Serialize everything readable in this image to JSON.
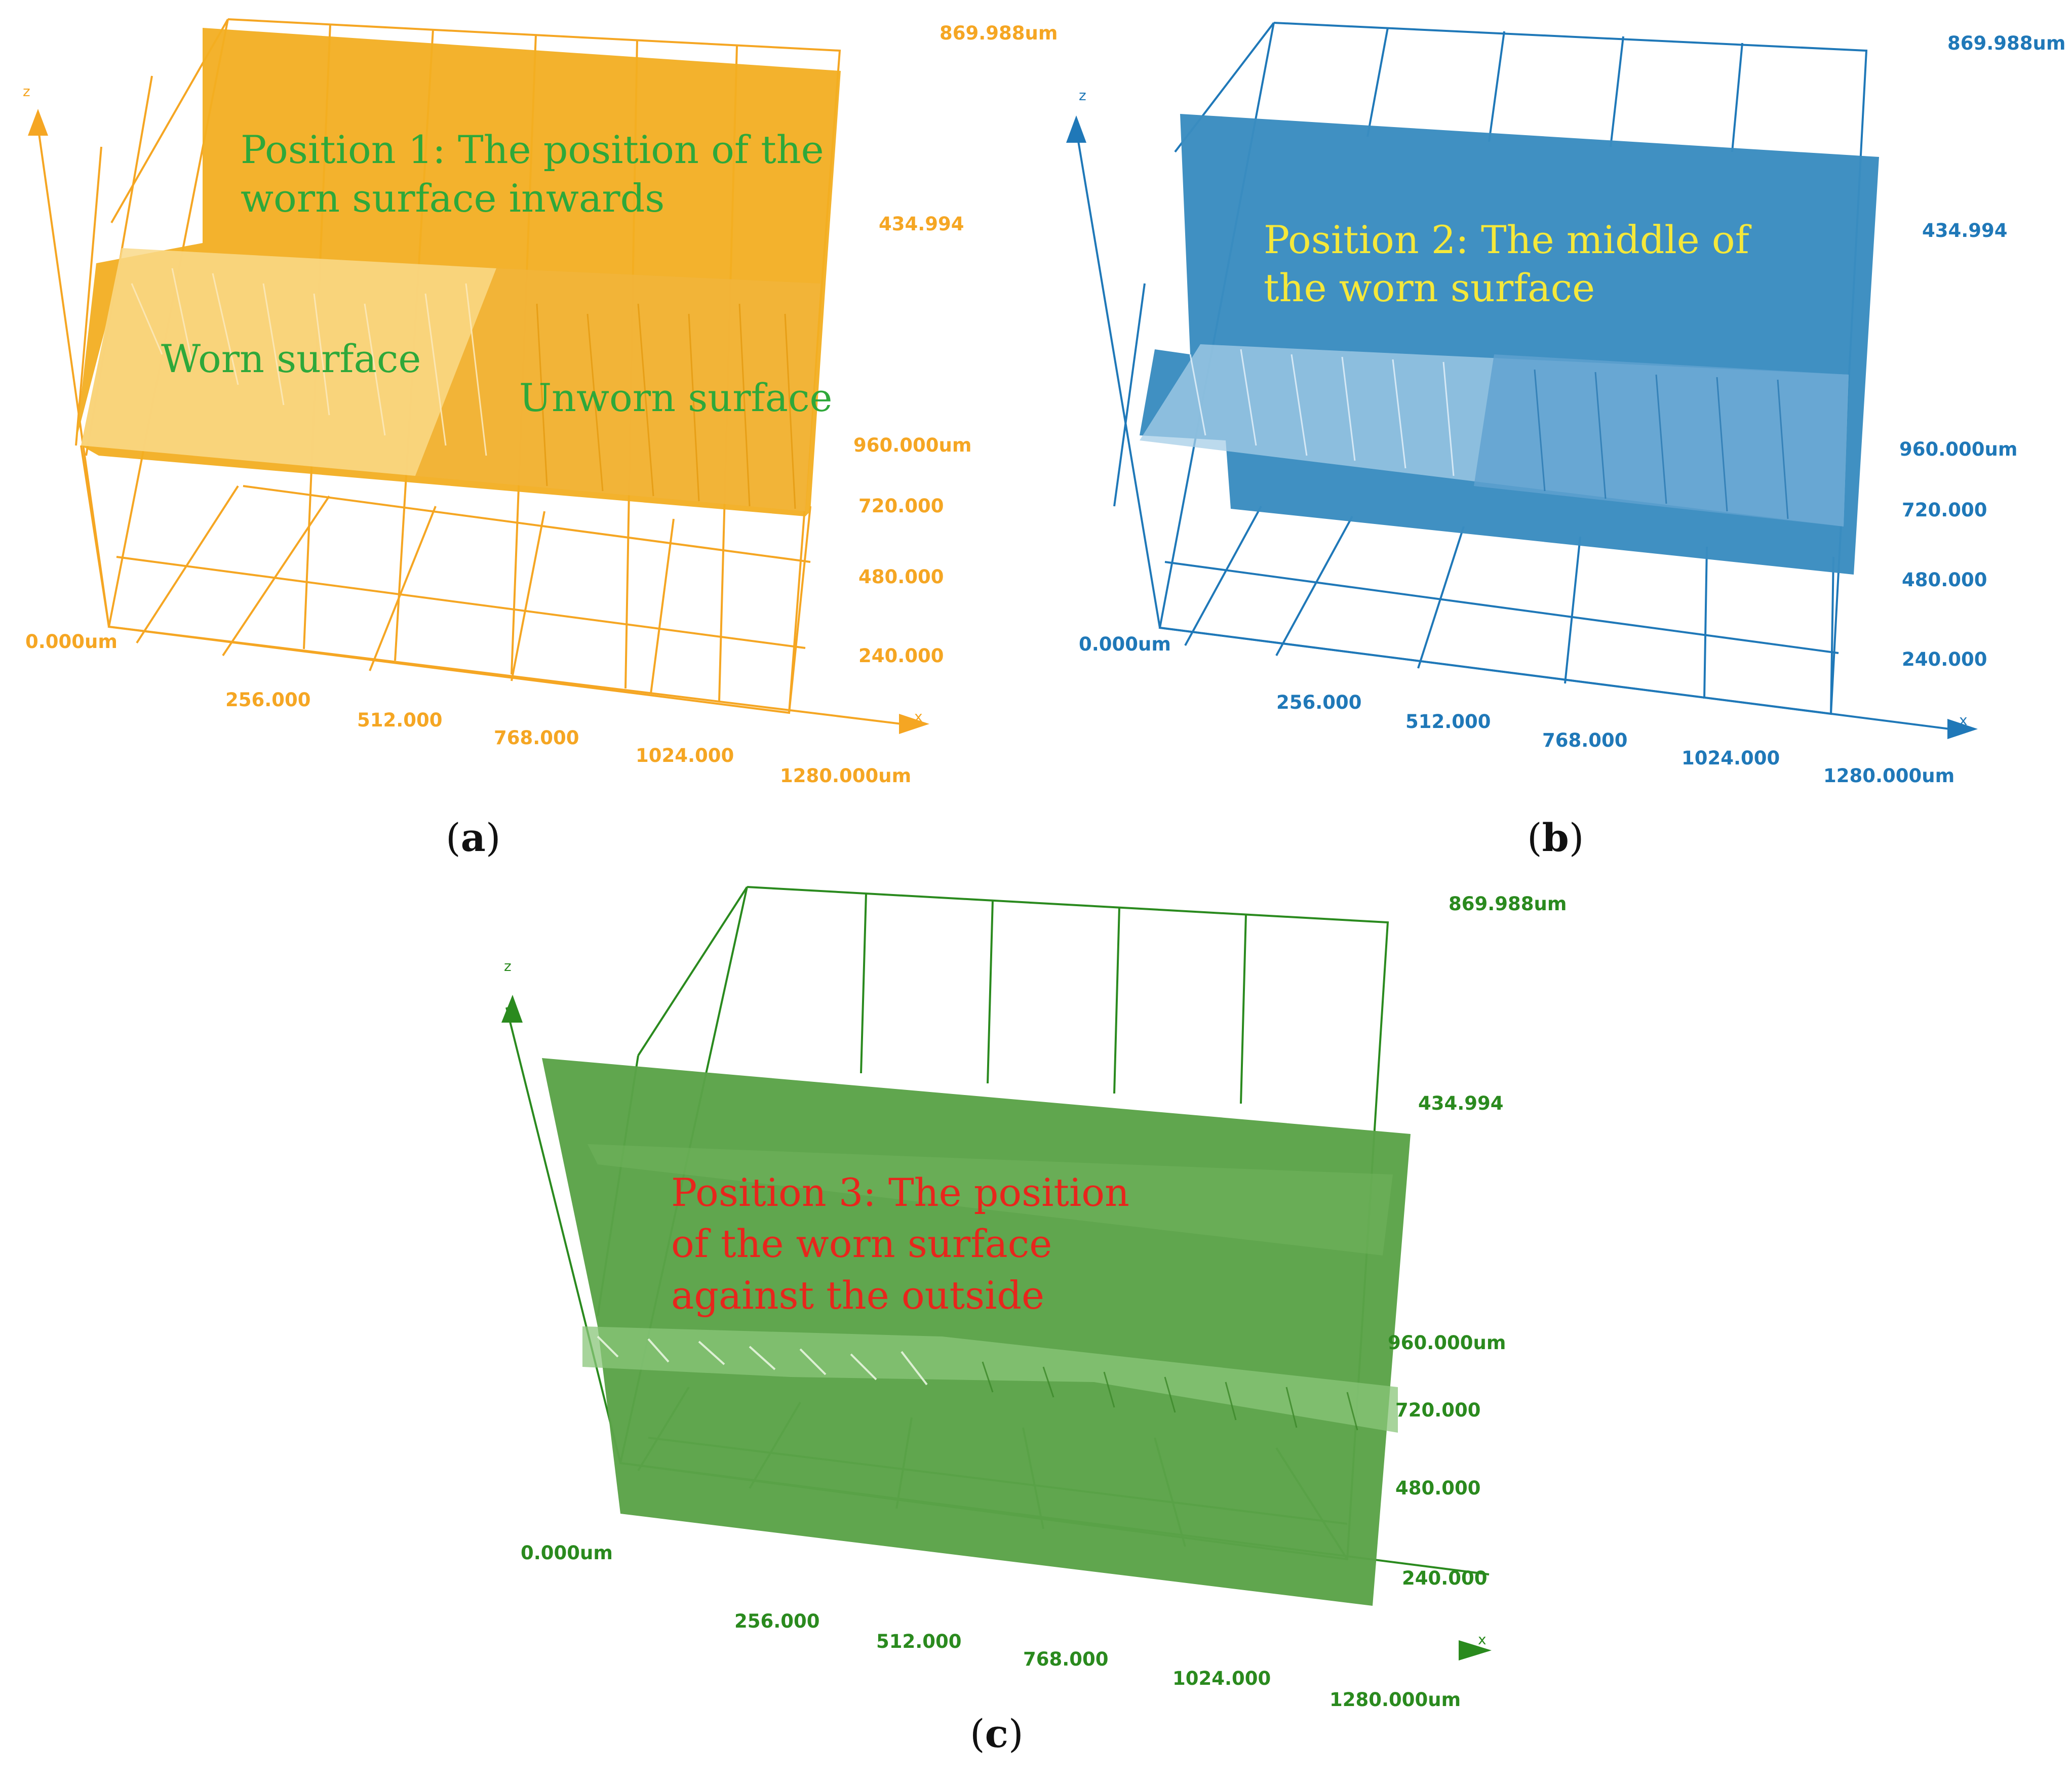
{
  "panels": [
    {
      "id": "a",
      "caption_open": "(",
      "caption_letter": "a",
      "caption_close": ")",
      "color": "#F5A623",
      "fill": "#F2AE22",
      "x_ticks": [
        "0.000um",
        "256.000",
        "512.000",
        "768.000",
        "1024.000",
        "1280.000um"
      ],
      "y_ticks": [
        "240.000",
        "480.000",
        "720.000",
        "960.000um"
      ],
      "z_ticks": [
        "869.988um",
        "434.994"
      ],
      "x_axis_name": "x",
      "z_axis_name": "z",
      "annotations": [
        {
          "lines": [
            "Position 1: The position of the",
            "worn surface inwards"
          ],
          "color": "#2EA83A"
        },
        {
          "lines": [
            "Worn surface"
          ],
          "color": "#2EA83A"
        },
        {
          "lines": [
            "Unworn surface"
          ],
          "color": "#2EA83A"
        }
      ]
    },
    {
      "id": "b",
      "caption_open": "(",
      "caption_letter": "b",
      "caption_close": ")",
      "color": "#1F78B8",
      "fill": "#3A8CC0",
      "x_ticks": [
        "0.000um",
        "256.000",
        "512.000",
        "768.000",
        "1024.000",
        "1280.000um"
      ],
      "y_ticks": [
        "240.000",
        "480.000",
        "720.000",
        "960.000um"
      ],
      "z_ticks": [
        "869.988um",
        "434.994"
      ],
      "x_axis_name": "x",
      "z_axis_name": "z",
      "annotations": [
        {
          "lines": [
            "Position 2: The middle of",
            "the worn surface"
          ],
          "color": "#F5E83A"
        }
      ]
    },
    {
      "id": "c",
      "caption_open": "(",
      "caption_letter": "c",
      "caption_close": ")",
      "color": "#2A8A1E",
      "fill": "#5BA348",
      "x_ticks": [
        "0.000um",
        "256.000",
        "512.000",
        "768.000",
        "1024.000",
        "1280.000um"
      ],
      "y_ticks": [
        "240.000",
        "480.000",
        "720.000",
        "960.000um"
      ],
      "z_ticks": [
        "869.988um",
        "434.994"
      ],
      "x_axis_name": "x",
      "z_axis_name": "z",
      "annotations": [
        {
          "lines": [
            "Position 3: The position",
            "of the worn surface",
            "against the outside"
          ],
          "color": "#E8251C"
        }
      ]
    }
  ]
}
